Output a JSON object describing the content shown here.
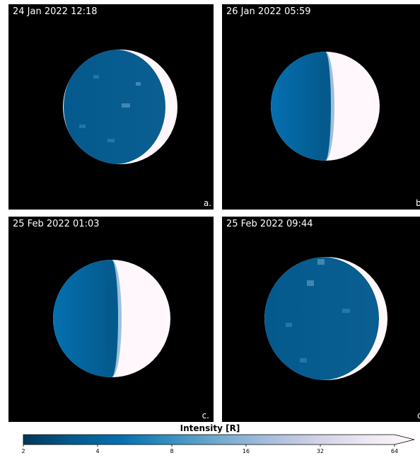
{
  "panels": [
    {
      "timestamp": "24 Jan 2022 12:18",
      "label": "a.",
      "lit_fraction": 0.08,
      "lit_side": "right"
    },
    {
      "timestamp": "26 Jan 2022 05:59",
      "label": "b.",
      "lit_fraction": 0.45,
      "lit_side": "right"
    },
    {
      "timestamp": "25 Feb 2022 01:03",
      "label": "c.",
      "lit_fraction": 0.45,
      "lit_side": "right"
    },
    {
      "timestamp": "25 Feb 2022 09:44",
      "label": "d.",
      "lit_fraction": 0.05,
      "lit_side": "right"
    }
  ],
  "colorbar": {
    "title": "Intensity [R]",
    "ticks": [
      "2",
      "4",
      "8",
      "16",
      "32",
      "64"
    ],
    "scale": "log2",
    "range": [
      2,
      64
    ],
    "extend": "max",
    "colors": [
      "#023858",
      "#045a8d",
      "#0570b0",
      "#3690c0",
      "#74a9cf",
      "#a6bddb",
      "#d0d1e6",
      "#ece7f2",
      "#fff7fb"
    ]
  }
}
